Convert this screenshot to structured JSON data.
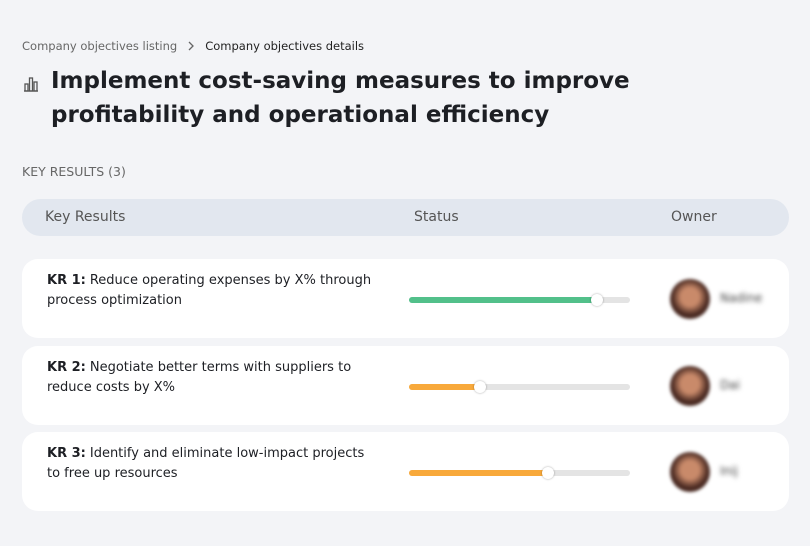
{
  "breadcrumb": {
    "items": [
      "Company objectives listing",
      "Company objectives details"
    ]
  },
  "header": {
    "title": "Implement cost-saving measures to improve profitability and operational efficiency"
  },
  "section": {
    "label": "KEY RESULTS (3)"
  },
  "table": {
    "columns": [
      "Key Results",
      "Status",
      "Owner"
    ],
    "rows": [
      {
        "label": "KR 1:",
        "text": "Reduce operating expenses by X% through process optimization",
        "progress": 85,
        "color": "#52c08a",
        "owner": "Nadine"
      },
      {
        "label": "KR 2:",
        "text": "Negotiate better terms with suppliers to reduce costs by X%",
        "progress": 32,
        "color": "#f8a93b",
        "owner": "Dai"
      },
      {
        "label": "KR 3:",
        "text": "Identify and eliminate low-impact projects to free up resources",
        "progress": 63,
        "color": "#f8a93b",
        "owner": "Inij"
      }
    ]
  }
}
